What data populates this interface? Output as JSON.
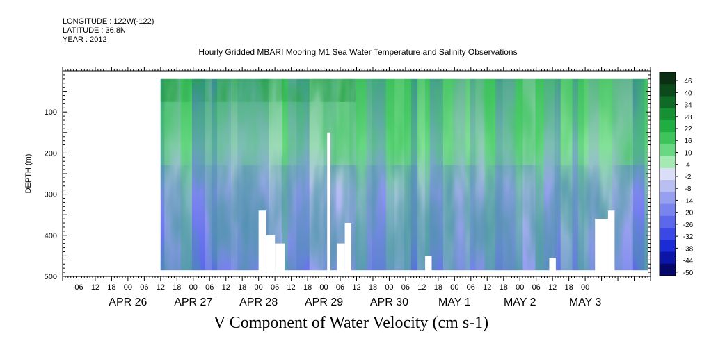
{
  "header": {
    "longitude": "LONGITUDE : 122W(-122)",
    "latitude": "LATITUDE : 36.8N",
    "year": "YEAR : 2012"
  },
  "chart_data": {
    "type": "heatmap",
    "title": "Hourly Gridded MBARI Mooring M1 Sea Water Temperature and Salinity Observations",
    "variable_label": "V Component of Water Velocity (cm s-1)",
    "ylabel": "DEPTH (m)",
    "xlabel": "",
    "y_reversed": true,
    "ylim": [
      0,
      500
    ],
    "yticks": [
      100,
      200,
      300,
      400,
      500
    ],
    "xlim_hours": [
      -24,
      192
    ],
    "hour_tick_labels": [
      "06",
      "12",
      "18",
      "00",
      "06",
      "12",
      "18",
      "00",
      "06",
      "12",
      "18",
      "00",
      "06",
      "12",
      "18",
      "00",
      "06",
      "12",
      "18",
      "00",
      "06",
      "12",
      "18",
      "00",
      "06",
      "12",
      "18",
      "00",
      "06",
      "12",
      "18",
      "00"
    ],
    "date_labels": [
      "APR 26",
      "APR 27",
      "APR 28",
      "APR 29",
      "APR 30",
      "MAY  1",
      "MAY  2",
      "MAY  3"
    ],
    "colorbar": {
      "labels": [
        "46",
        "40",
        "34",
        "28",
        "22",
        "16",
        "10",
        "4",
        "-2",
        "-8",
        "-14",
        "-20",
        "-26",
        "-32",
        "-38",
        "-44",
        "-50"
      ],
      "colors": [
        "#0a2f12",
        "#0c4a1c",
        "#0f6a26",
        "#159033",
        "#1fae42",
        "#3dc55c",
        "#68d882",
        "#a4eab2",
        "#dadef6",
        "#b9bff0",
        "#979ff0",
        "#7a84ee",
        "#5c68ec",
        "#3a49e6",
        "#1b2bd6",
        "#0b16a8",
        "#05086a"
      ]
    },
    "data_coverage": {
      "depth_min_m": 20,
      "depth_max_m": 485
    },
    "no_data_gaps": [
      {
        "day_start": 2.0,
        "day_end": 2.12,
        "depth_top_m": 340
      },
      {
        "day_start": 2.12,
        "day_end": 2.25,
        "depth_top_m": 400
      },
      {
        "day_start": 2.25,
        "day_end": 2.4,
        "depth_top_m": 420
      },
      {
        "day_start": 3.05,
        "day_end": 3.1,
        "depth_top_m": 150
      },
      {
        "day_start": 3.2,
        "day_end": 3.32,
        "depth_top_m": 420
      },
      {
        "day_start": 3.32,
        "day_end": 3.42,
        "depth_top_m": 370
      },
      {
        "day_start": 4.55,
        "day_end": 4.65,
        "depth_top_m": 450
      },
      {
        "day_start": 6.45,
        "day_end": 6.55,
        "depth_top_m": 455
      },
      {
        "day_start": 7.15,
        "day_end": 7.35,
        "depth_top_m": 360
      },
      {
        "day_start": 7.35,
        "day_end": 7.45,
        "depth_top_m": 340
      }
    ]
  }
}
